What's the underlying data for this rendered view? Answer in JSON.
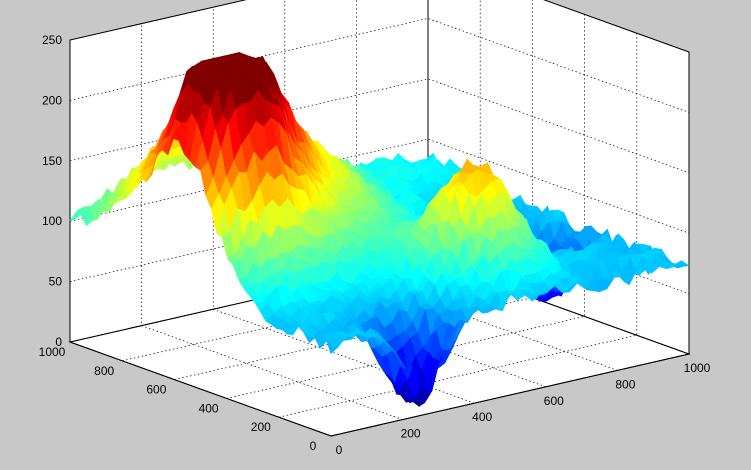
{
  "chart_data": {
    "type": "surface",
    "title": "",
    "xlabel": "",
    "ylabel": "",
    "zlabel": "",
    "xlim": [
      0,
      1000
    ],
    "ylim": [
      0,
      1000
    ],
    "zlim": [
      0,
      250
    ],
    "x_ticks": [
      "0",
      "200",
      "400",
      "600",
      "800",
      "1000"
    ],
    "y_ticks": [
      "0",
      "200",
      "400",
      "600",
      "800",
      "1000"
    ],
    "z_ticks": [
      "0",
      "50",
      "100",
      "150",
      "200",
      "250"
    ],
    "grid": true,
    "colormap": "jet",
    "background_color": "#c8c8c8",
    "axes_color": "#ffffff",
    "base_level": 75,
    "features": [
      {
        "x": 270,
        "y": 730,
        "height": 120,
        "spread": 210
      },
      {
        "x": 120,
        "y": 560,
        "height": 150,
        "spread": 110
      },
      {
        "x": 570,
        "y": 230,
        "height": 90,
        "spread": 90
      },
      {
        "x": 270,
        "y": 60,
        "height": -75,
        "spread": 60
      },
      {
        "x": 900,
        "y": 930,
        "height": 15,
        "spread": 110
      },
      {
        "x": 880,
        "y": 380,
        "height": -55,
        "spread": 55
      },
      {
        "x": 630,
        "y": 880,
        "height": 20,
        "spread": 100
      }
    ]
  }
}
